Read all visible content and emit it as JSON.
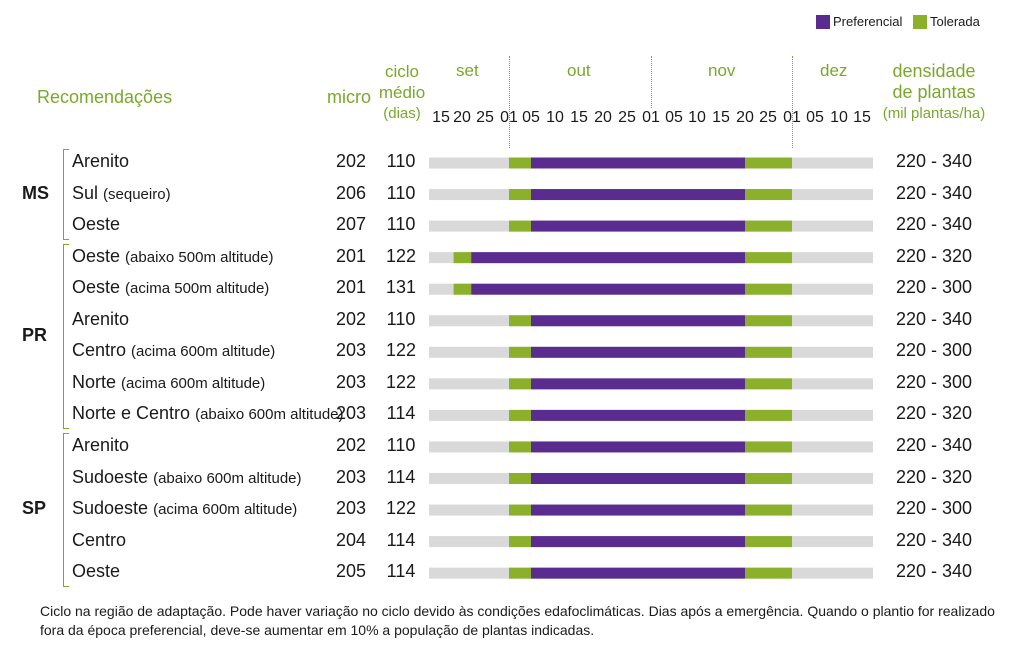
{
  "legend": {
    "preferencial": "Preferencial",
    "tolerada": "Tolerada",
    "preferencial_color": "#5b2c8f",
    "tolerada_color": "#8ab02c",
    "background_color": "#d9d9d9"
  },
  "header": {
    "recomendacoes": "Recomendações",
    "micro": "micro",
    "ciclo_line1": "ciclo",
    "ciclo_line2": "médio",
    "ciclo_line3": "(dias)",
    "densidade_line1": "densidade",
    "densidade_line2": "de plantas",
    "densidade_line3": "(mil plantas/ha)"
  },
  "chart_data": {
    "type": "gantt",
    "months": [
      "set",
      "out",
      "nov",
      "dez"
    ],
    "tick_labels": [
      "15",
      "20",
      "25",
      "01",
      "05",
      "10",
      "15",
      "20",
      "25",
      "01",
      "05",
      "10",
      "15",
      "20",
      "25",
      "01",
      "05",
      "10",
      "15"
    ],
    "axis_range": [
      "09-15",
      "12-15"
    ],
    "states": [
      {
        "name": "MS",
        "rows": [
          0,
          1,
          2
        ]
      },
      {
        "name": "PR",
        "rows": [
          3,
          4,
          5,
          6,
          7,
          8
        ]
      },
      {
        "name": "SP",
        "rows": [
          9,
          10,
          11,
          12,
          13
        ]
      }
    ],
    "rows": [
      {
        "label": "Arenito",
        "note": "",
        "micro": "202",
        "ciclo": "110",
        "densidade": "220 - 340",
        "tolerada": [
          [
            "10-01",
            "10-05"
          ],
          [
            "11-20",
            "12-01"
          ]
        ],
        "preferencial": [
          "10-05",
          "11-20"
        ]
      },
      {
        "label": "Sul",
        "note": "(sequeiro)",
        "micro": "206",
        "ciclo": "110",
        "densidade": "220 - 340",
        "tolerada": [
          [
            "10-01",
            "10-05"
          ],
          [
            "11-20",
            "12-01"
          ]
        ],
        "preferencial": [
          "10-05",
          "11-20"
        ]
      },
      {
        "label": "Oeste",
        "note": "",
        "micro": "207",
        "ciclo": "110",
        "densidade": "220 - 340",
        "tolerada": [
          [
            "10-01",
            "10-05"
          ],
          [
            "11-20",
            "12-01"
          ]
        ],
        "preferencial": [
          "10-05",
          "11-20"
        ]
      },
      {
        "label": "Oeste",
        "note": "(abaixo 500m altitude)",
        "micro": "201",
        "ciclo": "122",
        "densidade": "220 - 320",
        "tolerada": [
          [
            "09-18",
            "09-22"
          ],
          [
            "11-20",
            "12-01"
          ]
        ],
        "preferencial": [
          "09-22",
          "11-20"
        ]
      },
      {
        "label": "Oeste",
        "note": "(acima 500m altitude)",
        "micro": "201",
        "ciclo": "131",
        "densidade": "220 - 300",
        "tolerada": [
          [
            "09-18",
            "09-22"
          ],
          [
            "11-20",
            "12-01"
          ]
        ],
        "preferencial": [
          "09-22",
          "11-20"
        ]
      },
      {
        "label": "Arenito",
        "note": "",
        "micro": "202",
        "ciclo": "110",
        "densidade": "220 - 340",
        "tolerada": [
          [
            "10-01",
            "10-05"
          ],
          [
            "11-20",
            "12-01"
          ]
        ],
        "preferencial": [
          "10-05",
          "11-20"
        ]
      },
      {
        "label": "Centro",
        "note": "(acima 600m altitude)",
        "micro": "203",
        "ciclo": "122",
        "densidade": "220 - 300",
        "tolerada": [
          [
            "10-01",
            "10-05"
          ],
          [
            "11-20",
            "12-01"
          ]
        ],
        "preferencial": [
          "10-05",
          "11-20"
        ]
      },
      {
        "label": "Norte",
        "note": "(acima 600m altitude)",
        "micro": "203",
        "ciclo": "122",
        "densidade": "220 - 300",
        "tolerada": [
          [
            "10-01",
            "10-05"
          ],
          [
            "11-20",
            "12-01"
          ]
        ],
        "preferencial": [
          "10-05",
          "11-20"
        ]
      },
      {
        "label": "Norte e Centro",
        "note": "(abaixo 600m altitude)",
        "micro": "203",
        "ciclo": "114",
        "densidade": "220 - 320",
        "tolerada": [
          [
            "10-01",
            "10-05"
          ],
          [
            "11-20",
            "12-01"
          ]
        ],
        "preferencial": [
          "10-05",
          "11-20"
        ]
      },
      {
        "label": "Arenito",
        "note": "",
        "micro": "202",
        "ciclo": "110",
        "densidade": "220 - 340",
        "tolerada": [
          [
            "10-01",
            "10-05"
          ],
          [
            "11-20",
            "12-01"
          ]
        ],
        "preferencial": [
          "10-05",
          "11-20"
        ]
      },
      {
        "label": "Sudoeste",
        "note": "(abaixo 600m altitude)",
        "micro": "203",
        "ciclo": "114",
        "densidade": "220 - 320",
        "tolerada": [
          [
            "10-01",
            "10-05"
          ],
          [
            "11-20",
            "12-01"
          ]
        ],
        "preferencial": [
          "10-05",
          "11-20"
        ]
      },
      {
        "label": "Sudoeste",
        "note": "(acima 600m altitude)",
        "micro": "203",
        "ciclo": "122",
        "densidade": "220 - 300",
        "tolerada": [
          [
            "10-01",
            "10-05"
          ],
          [
            "11-20",
            "12-01"
          ]
        ],
        "preferencial": [
          "10-05",
          "11-20"
        ]
      },
      {
        "label": "Centro",
        "note": "",
        "micro": "204",
        "ciclo": "114",
        "densidade": "220 - 340",
        "tolerada": [
          [
            "10-01",
            "10-05"
          ],
          [
            "11-20",
            "12-01"
          ]
        ],
        "preferencial": [
          "10-05",
          "11-20"
        ]
      },
      {
        "label": "Oeste",
        "note": "",
        "micro": "205",
        "ciclo": "114",
        "densidade": "220 - 340",
        "tolerada": [
          [
            "10-01",
            "10-05"
          ],
          [
            "11-20",
            "12-01"
          ]
        ],
        "preferencial": [
          "10-05",
          "11-20"
        ]
      }
    ]
  },
  "footer": "Ciclo na região de adaptação. Pode haver variação no ciclo devido às condições edafoclimáticas. Dias após a emergência. Quando o plantio for realizado fora da época preferencial, deve-se aumentar em 10% a população de plantas indicadas."
}
